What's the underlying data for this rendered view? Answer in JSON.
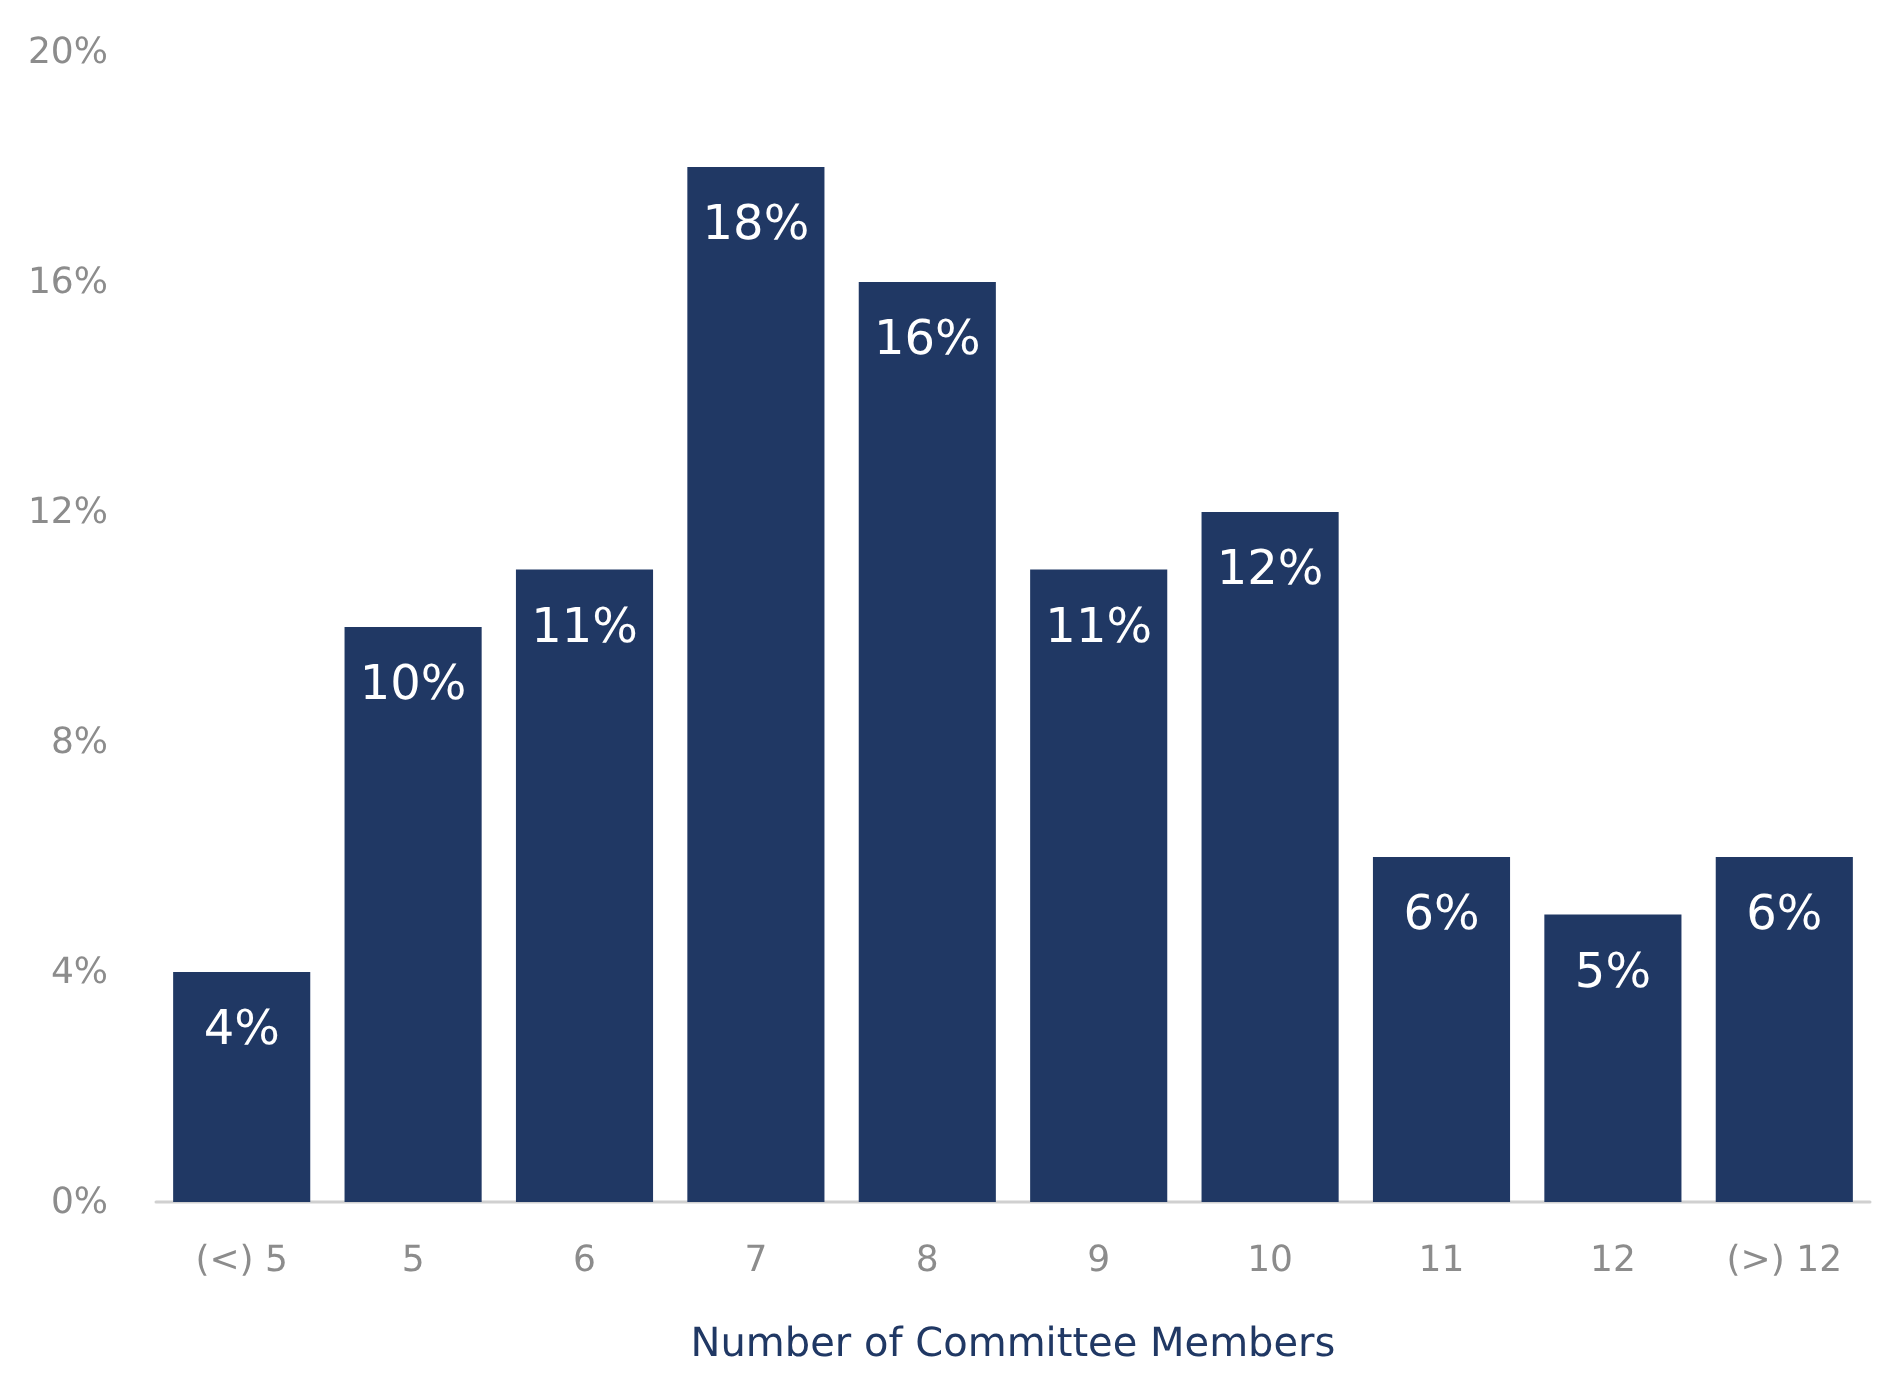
{
  "chart_data": {
    "type": "bar",
    "xlabel": "Number of Committee Members",
    "categories": [
      "(<) 5",
      "5",
      "6",
      "7",
      "8",
      "9",
      "10",
      "11",
      "12",
      "(>) 12"
    ],
    "values": [
      4,
      10,
      11,
      18,
      16,
      11,
      12,
      6,
      5,
      6
    ],
    "value_labels": [
      "4%",
      "10%",
      "11%",
      "18%",
      "16%",
      "11%",
      "12%",
      "6%",
      "5%",
      "6%"
    ],
    "color": "#203864",
    "ylim": [
      0,
      20
    ],
    "yticks": [
      {
        "value": 0,
        "label": "0%"
      },
      {
        "value": 4,
        "label": "4%"
      },
      {
        "value": 8,
        "label": "8%"
      },
      {
        "value": 12,
        "label": "12%"
      },
      {
        "value": 16,
        "label": "16%"
      },
      {
        "value": 20,
        "label": "20%"
      }
    ],
    "grid": false
  }
}
